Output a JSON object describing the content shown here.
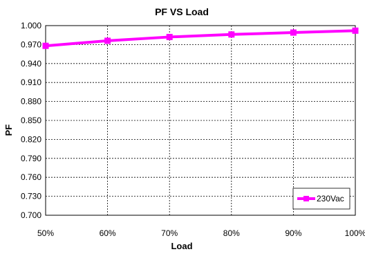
{
  "chart_data": {
    "type": "line",
    "title": "PF  VS  Load",
    "xlabel": "Load",
    "ylabel": "PF",
    "categories": [
      "50%",
      "60%",
      "70%",
      "80%",
      "90%",
      "100%"
    ],
    "series": [
      {
        "name": "230Vac",
        "values": [
          0.968,
          0.976,
          0.982,
          0.986,
          0.989,
          0.992
        ],
        "color": "#ff00ff",
        "marker": "square"
      }
    ],
    "ylim": [
      0.7,
      1.0
    ],
    "yticks": [
      "1.000",
      "0.970",
      "0.940",
      "0.910",
      "0.880",
      "0.850",
      "0.820",
      "0.790",
      "0.760",
      "0.730",
      "0.700"
    ],
    "grid": "dashed",
    "legend": "bottom-right"
  }
}
